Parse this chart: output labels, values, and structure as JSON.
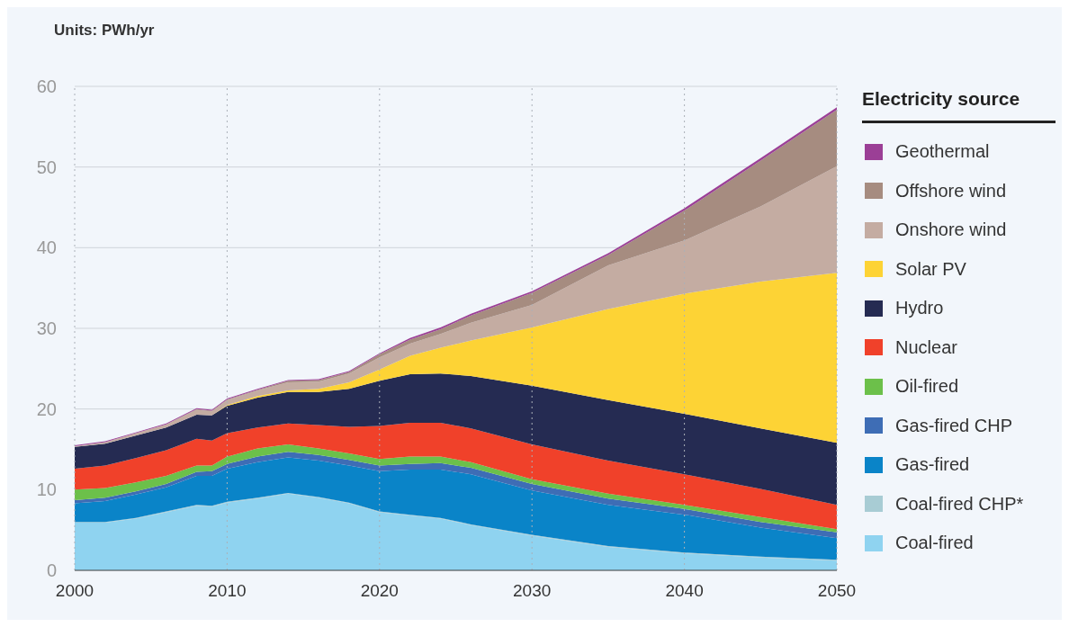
{
  "chart_data": {
    "type": "area",
    "stacked": true,
    "ylabel": "Units: PWh/yr",
    "legend_title": "Electricity source",
    "legend": "right",
    "grid": true,
    "x": [
      2000,
      2002,
      2004,
      2006,
      2008,
      2009,
      2010,
      2012,
      2014,
      2016,
      2018,
      2020,
      2022,
      2024,
      2026,
      2030,
      2035,
      2040,
      2045,
      2050
    ],
    "xlim": [
      2000,
      2050
    ],
    "xticks": [
      2000,
      2010,
      2020,
      2030,
      2040,
      2050
    ],
    "ylim": [
      0,
      60
    ],
    "yticks": [
      0,
      10,
      20,
      30,
      40,
      50,
      60
    ],
    "series": [
      {
        "name": "Coal-fired",
        "color": "#8fd3f0",
        "values": [
          5.9,
          5.9,
          6.4,
          7.2,
          8.0,
          7.9,
          8.4,
          8.9,
          9.5,
          9.0,
          8.3,
          7.2,
          6.8,
          6.4,
          5.6,
          4.3,
          2.9,
          2.1,
          1.6,
          1.2
        ]
      },
      {
        "name": "Coal-fired CHP*",
        "color": "#a8ccd4",
        "values": [
          0.1,
          0.1,
          0.1,
          0.1,
          0.1,
          0.1,
          0.1,
          0.1,
          0.1,
          0.1,
          0.1,
          0.1,
          0.1,
          0.1,
          0.1,
          0.1,
          0.1,
          0.1,
          0.1,
          0.1
        ]
      },
      {
        "name": "Gas-fired",
        "color": "#0a84c8",
        "values": [
          2.3,
          2.6,
          2.9,
          3.0,
          3.6,
          3.7,
          4.1,
          4.4,
          4.4,
          4.5,
          4.6,
          5.0,
          5.6,
          6.0,
          6.2,
          5.5,
          5.1,
          4.7,
          3.6,
          2.7
        ]
      },
      {
        "name": "Gas-fired CHP",
        "color": "#3e6db5",
        "values": [
          0.4,
          0.4,
          0.4,
          0.4,
          0.5,
          0.6,
          0.6,
          0.7,
          0.7,
          0.7,
          0.7,
          0.7,
          0.7,
          0.8,
          0.8,
          0.8,
          0.8,
          0.7,
          0.7,
          0.7
        ]
      },
      {
        "name": "Oil-fired",
        "color": "#6cc04a",
        "values": [
          1.3,
          1.2,
          1.1,
          1.0,
          0.8,
          0.7,
          0.9,
          1.0,
          0.9,
          0.8,
          0.8,
          0.8,
          0.9,
          0.8,
          0.7,
          0.6,
          0.6,
          0.5,
          0.6,
          0.4
        ]
      },
      {
        "name": "Nuclear",
        "color": "#f0412a",
        "values": [
          2.6,
          2.8,
          3.0,
          3.2,
          3.3,
          3.1,
          2.9,
          2.6,
          2.6,
          2.9,
          3.3,
          4.1,
          4.2,
          4.2,
          4.2,
          4.3,
          4.1,
          3.8,
          3.5,
          3.0
        ]
      },
      {
        "name": "Hydro",
        "color": "#252b52",
        "values": [
          2.7,
          2.7,
          2.8,
          2.8,
          3.0,
          3.1,
          3.4,
          3.7,
          3.9,
          4.1,
          4.7,
          5.6,
          6.0,
          6.1,
          6.5,
          7.3,
          7.5,
          7.5,
          7.5,
          7.7
        ]
      },
      {
        "name": "Solar PV",
        "color": "#fdd335",
        "values": [
          0,
          0,
          0,
          0,
          0,
          0,
          0.1,
          0.2,
          0.2,
          0.4,
          0.8,
          1.4,
          2.3,
          3.2,
          4.4,
          7.2,
          11.3,
          14.9,
          18.2,
          21.1
        ]
      },
      {
        "name": "Onshore wind",
        "color": "#c4aca2",
        "values": [
          0.1,
          0.2,
          0.3,
          0.4,
          0.6,
          0.5,
          0.6,
          0.7,
          1.0,
          0.9,
          1.1,
          1.5,
          1.5,
          1.7,
          2.2,
          2.8,
          5.4,
          6.6,
          9.3,
          13.2
        ]
      },
      {
        "name": "Offshore wind",
        "color": "#a68c80",
        "values": [
          0,
          0,
          0,
          0,
          0.1,
          0.1,
          0.1,
          0.1,
          0.2,
          0.2,
          0.2,
          0.4,
          0.5,
          0.6,
          0.9,
          1.5,
          1.3,
          3.7,
          5.7,
          7.0
        ]
      },
      {
        "name": "Geothermal",
        "color": "#9b3f96",
        "values": [
          0.1,
          0.1,
          0.1,
          0.1,
          0.1,
          0.1,
          0.1,
          0.1,
          0.1,
          0.1,
          0.1,
          0.1,
          0.2,
          0.2,
          0.2,
          0.2,
          0.2,
          0.3,
          0.3,
          0.3
        ]
      }
    ]
  }
}
